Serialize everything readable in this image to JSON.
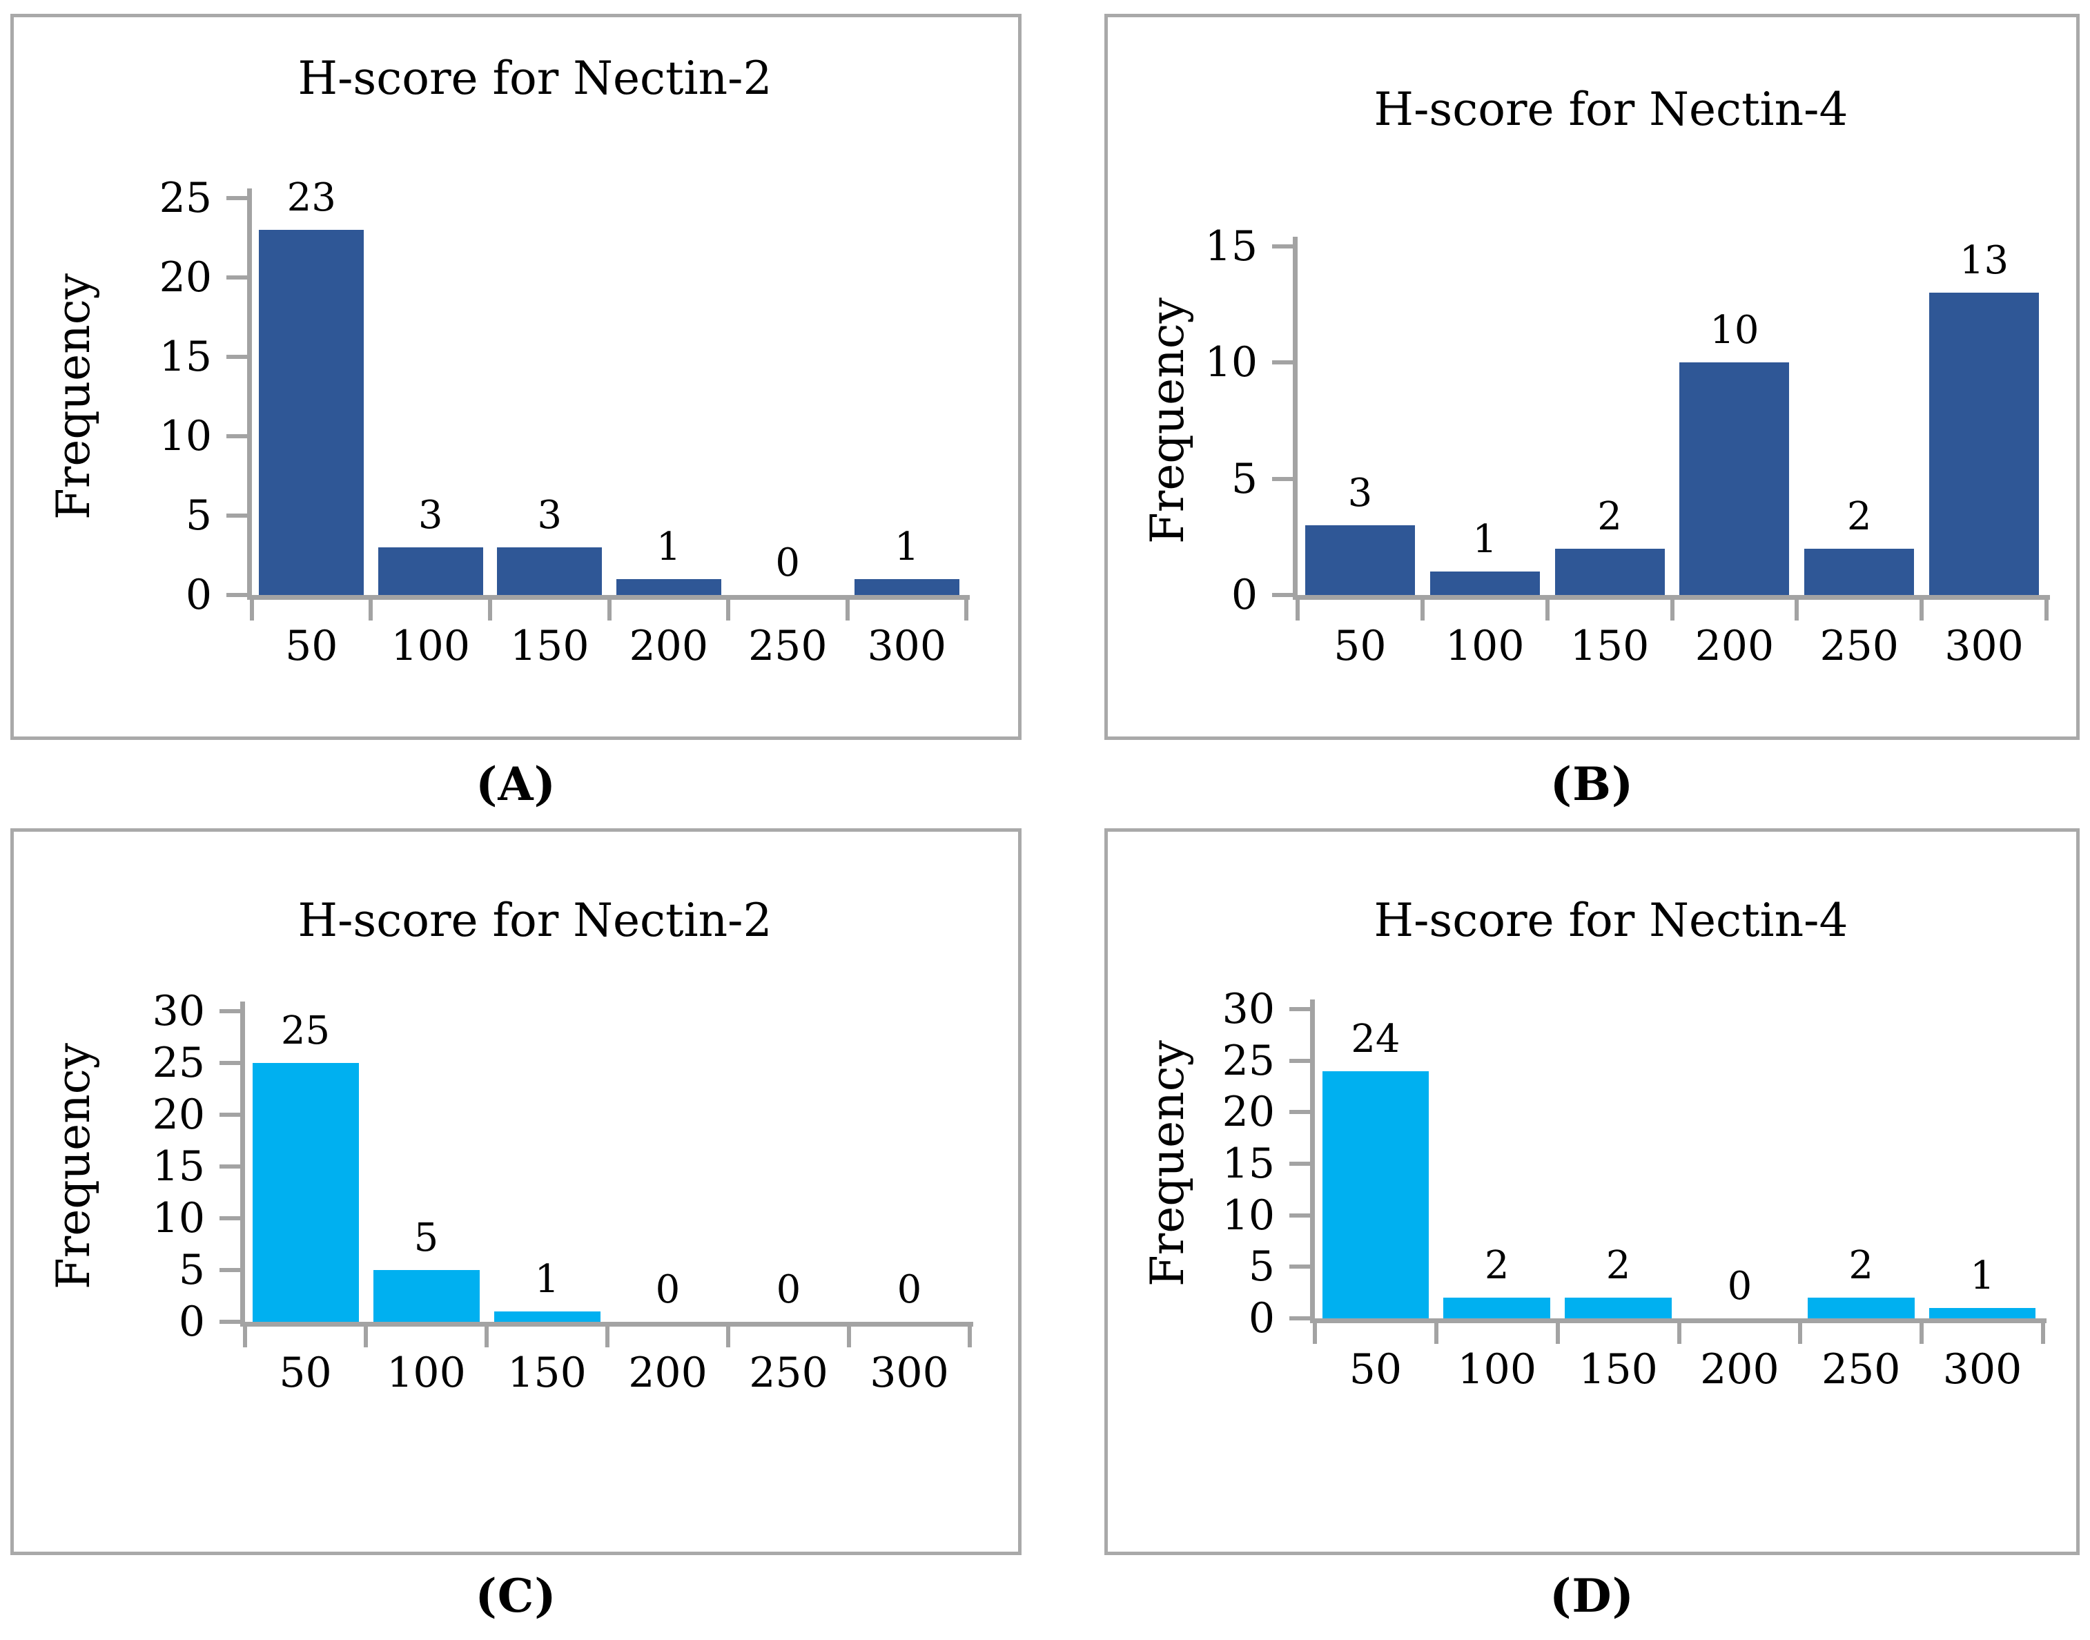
{
  "figure": {
    "captions": [
      "(A)",
      "(B)",
      "(C)",
      "(D)"
    ]
  },
  "colors": {
    "dark_blue": "#2F5796",
    "cyan": "#00B0F0",
    "axis_gray": "#A3A3A3",
    "panel_border_gray": "#A9A9A9",
    "text": "#000000"
  },
  "chart_data": [
    {
      "type": "bar",
      "panel": "A",
      "title": "H-score for Nectin-2",
      "xlabel": "",
      "ylabel": "Frequency",
      "categories": [
        "50",
        "100",
        "150",
        "200",
        "250",
        "300"
      ],
      "values": [
        23,
        3,
        3,
        1,
        0,
        1
      ],
      "ylim": [
        0,
        25
      ],
      "yticks": [
        0,
        5,
        10,
        15,
        20,
        25
      ],
      "bar_color": "#2F5796",
      "data_labels": true,
      "grid": false,
      "legend": "none"
    },
    {
      "type": "bar",
      "panel": "B",
      "title": "H-score for Nectin-4",
      "xlabel": "",
      "ylabel": "Frequency",
      "categories": [
        "50",
        "100",
        "150",
        "200",
        "250",
        "300"
      ],
      "values": [
        3,
        1,
        2,
        10,
        2,
        13
      ],
      "ylim": [
        0,
        15
      ],
      "yticks": [
        0,
        5,
        10,
        15
      ],
      "bar_color": "#2F5796",
      "data_labels": true,
      "grid": false,
      "legend": "none"
    },
    {
      "type": "bar",
      "panel": "C",
      "title": "H-score for Nectin-2",
      "xlabel": "",
      "ylabel": "Frequency",
      "categories": [
        "50",
        "100",
        "150",
        "200",
        "250",
        "300"
      ],
      "values": [
        25,
        5,
        1,
        0,
        0,
        0
      ],
      "ylim": [
        0,
        30
      ],
      "yticks": [
        0,
        5,
        10,
        15,
        20,
        25,
        30
      ],
      "bar_color": "#00B0F0",
      "data_labels": true,
      "grid": false,
      "legend": "none"
    },
    {
      "type": "bar",
      "panel": "D",
      "title": "H-score for Nectin-4",
      "xlabel": "",
      "ylabel": "Frequency",
      "categories": [
        "50",
        "100",
        "150",
        "200",
        "250",
        "300"
      ],
      "values": [
        24,
        2,
        2,
        0,
        2,
        1
      ],
      "ylim": [
        0,
        30
      ],
      "yticks": [
        0,
        5,
        10,
        15,
        20,
        25,
        30
      ],
      "bar_color": "#00B0F0",
      "data_labels": true,
      "grid": false,
      "legend": "none"
    }
  ]
}
